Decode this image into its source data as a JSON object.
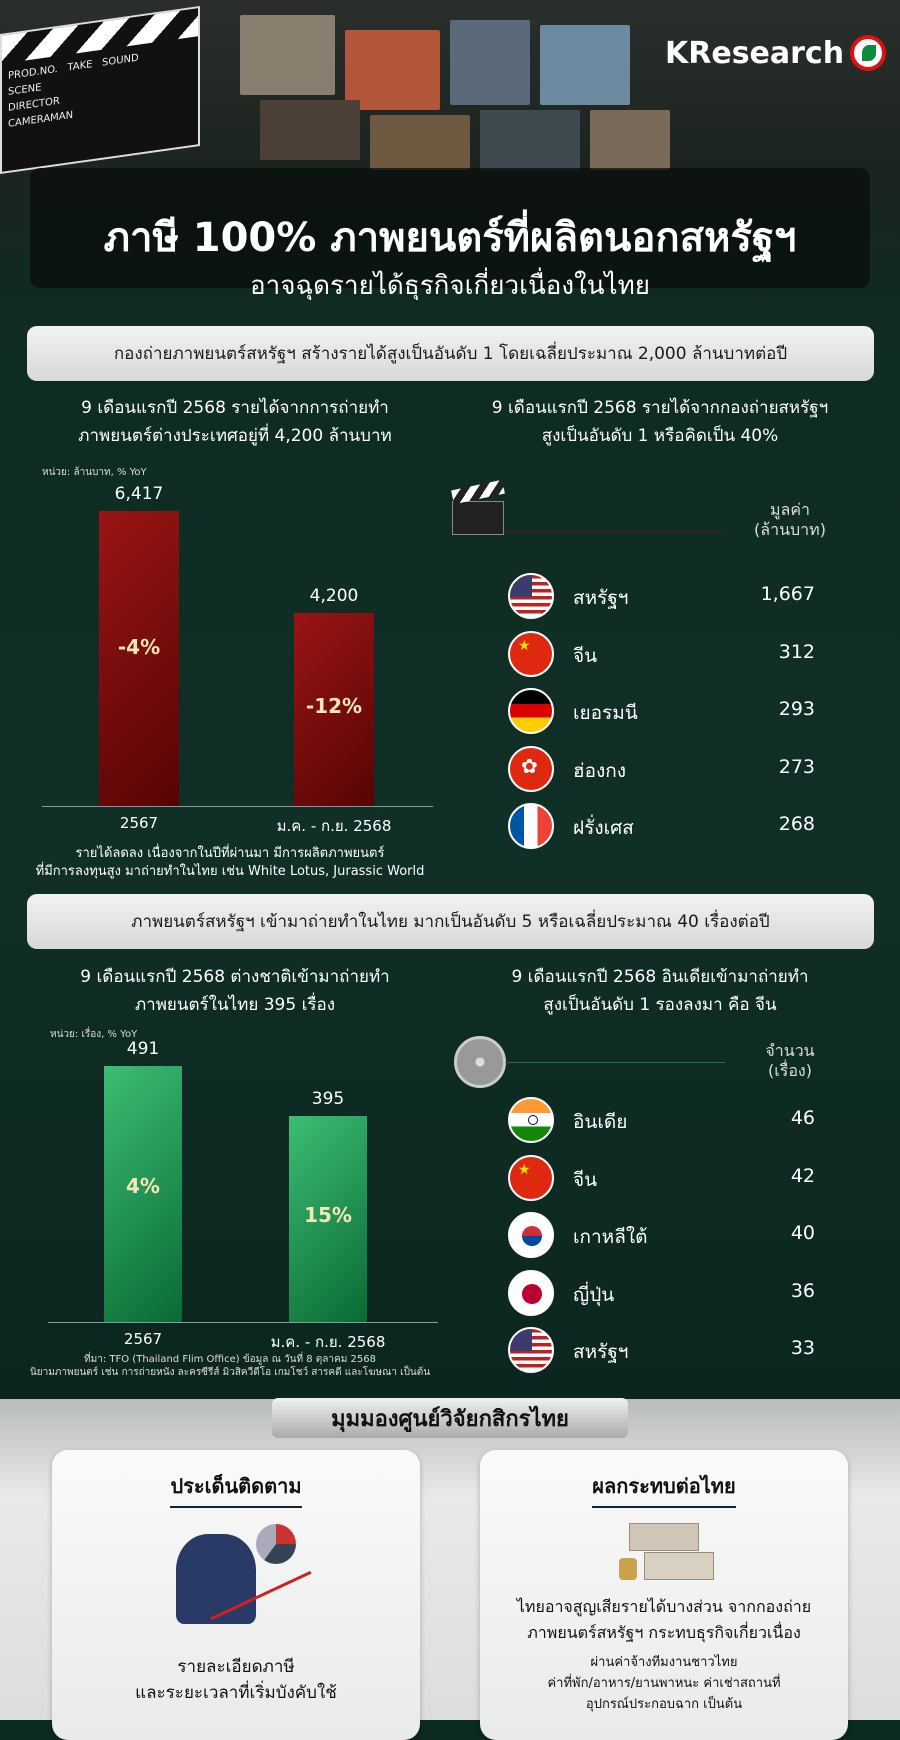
{
  "brand": {
    "logo_text": "KResearch"
  },
  "header": {
    "title": "ภาษี 100% ภาพยนตร์ที่ผลิตนอกสหรัฐฯ",
    "subtitle": "อาจฉุดรายได้ธุรกิจเกี่ยวเนื่องในไทย",
    "clapper_text": [
      "PROD.NO.",
      "TAKE",
      "SOUND",
      "SCENE",
      "DIRECTOR",
      "CAMERAMAN"
    ]
  },
  "section1": {
    "banner": "กองถ่ายภาพยนตร์สหรัฐฯ สร้างรายได้สูงเป็นอันดับ 1 โดยเฉลี่ยประมาณ 2,000 ล้านบาทต่อปี",
    "left_heading": [
      "9 เดือนแรกปี 2568 รายได้จากการถ่ายทำ",
      "ภาพยนตร์ต่างประเทศอยู่ที่ 4,200 ล้านบาท"
    ],
    "right_heading": [
      "9 เดือนแรกปี 2568 รายได้จากกองถ่ายสหรัฐฯ",
      "สูงเป็นอันดับ 1 หรือคิดเป็น 40%"
    ],
    "note": [
      "รายได้ลดลง เนื่องจากในปีที่ผ่านมา มีการผลิตภาพยนตร์",
      "ที่มีการลงทุนสูง มาถ่ายทำในไทย เช่น White Lotus, Jurassic World"
    ],
    "table_header": [
      "มูลค่า",
      "(ล้านบาท)"
    ],
    "rows": [
      {
        "name": "สหรัฐฯ",
        "value": "1,667",
        "flag": "us"
      },
      {
        "name": "จีน",
        "value": "312",
        "flag": "cn"
      },
      {
        "name": "เยอรมนี",
        "value": "293",
        "flag": "de"
      },
      {
        "name": "ฮ่องกง",
        "value": "273",
        "flag": "hk"
      },
      {
        "name": "ฝรั่งเศส",
        "value": "268",
        "flag": "fr"
      }
    ]
  },
  "section2": {
    "banner": "ภาพยนตร์สหรัฐฯ เข้ามาถ่ายทำในไทย มากเป็นอันดับ 5 หรือเฉลี่ยประมาณ 40 เรื่องต่อปี",
    "left_heading": [
      "9 เดือนแรกปี 2568 ต่างชาติเข้ามาถ่ายทำ",
      "ภาพยนตร์ในไทย 395 เรื่อง"
    ],
    "right_heading": [
      "9 เดือนแรกปี 2568 อินเดียเข้ามาถ่ายทำ",
      "สูงเป็นอันดับ 1 รองลงมา คือ จีน"
    ],
    "source": [
      "ที่มา: TFO (Thailand Flim Office)  ข้อมูล ณ วันที่ 8 ตุลาคม 2568",
      "นิยามภาพยนตร์ เช่น การถ่ายหนัง ละครซีรีส์ มิวสิควีดีโอ เกมโชว์ สารคดี และโฆษณา เป็นต้น"
    ],
    "table_header": [
      "จำนวน",
      "(เรื่อง)"
    ],
    "rows": [
      {
        "name": "อินเดีย",
        "value": "46",
        "flag": "in"
      },
      {
        "name": "จีน",
        "value": "42",
        "flag": "cn"
      },
      {
        "name": "เกาหลีใต้",
        "value": "40",
        "flag": "kr"
      },
      {
        "name": "ญี่ปุ่น",
        "value": "36",
        "flag": "jp"
      },
      {
        "name": "สหรัฐฯ",
        "value": "33",
        "flag": "us"
      }
    ]
  },
  "chart_data": [
    {
      "type": "bar",
      "unit_label": "หน่วย: ล้านบาท, % YoY",
      "categories": [
        "2567",
        "ม.ค. - ก.ย. 2568"
      ],
      "values": [
        6417,
        4200
      ],
      "value_labels": [
        "6,417",
        "4,200"
      ],
      "yoy_labels": [
        "-4%",
        "-12%"
      ],
      "bar_color": "#7a0b0b",
      "ylim": [
        0,
        6417
      ]
    },
    {
      "type": "bar",
      "unit_label": "หน่วย: เรื่อง, % YoY",
      "categories": [
        "2567",
        "ม.ค. - ก.ย. 2568"
      ],
      "values": [
        491,
        395
      ],
      "value_labels": [
        "491",
        "395"
      ],
      "yoy_labels": [
        "4%",
        "15%"
      ],
      "bar_color": "#18964f",
      "ylim": [
        0,
        491
      ]
    }
  ],
  "bottom": {
    "header": "มุมมองศูนย์วิจัยกสิกรไทย",
    "left_card": {
      "title": "ประเด็นติดตาม",
      "text": [
        "รายละเอียดภาษี",
        "และระยะเวลาที่เริ่มบังคับใช้"
      ]
    },
    "right_card": {
      "title": "ผลกระทบต่อไทย",
      "text": [
        "ไทยอาจสูญเสียรายได้บางส่วน จากกองถ่าย",
        "ภาพยนตร์สหรัฐฯ กระทบธุรกิจเกี่ยวเนื่อง"
      ],
      "detail": [
        "ผ่านค่าจ้างทีมงานชาวไทย",
        "ค่าที่พัก/อาหาร/ยานพาหนะ ค่าเช่าสถานที่",
        "อุปกรณ์ประกอบฉาก เป็นต้น"
      ]
    }
  }
}
